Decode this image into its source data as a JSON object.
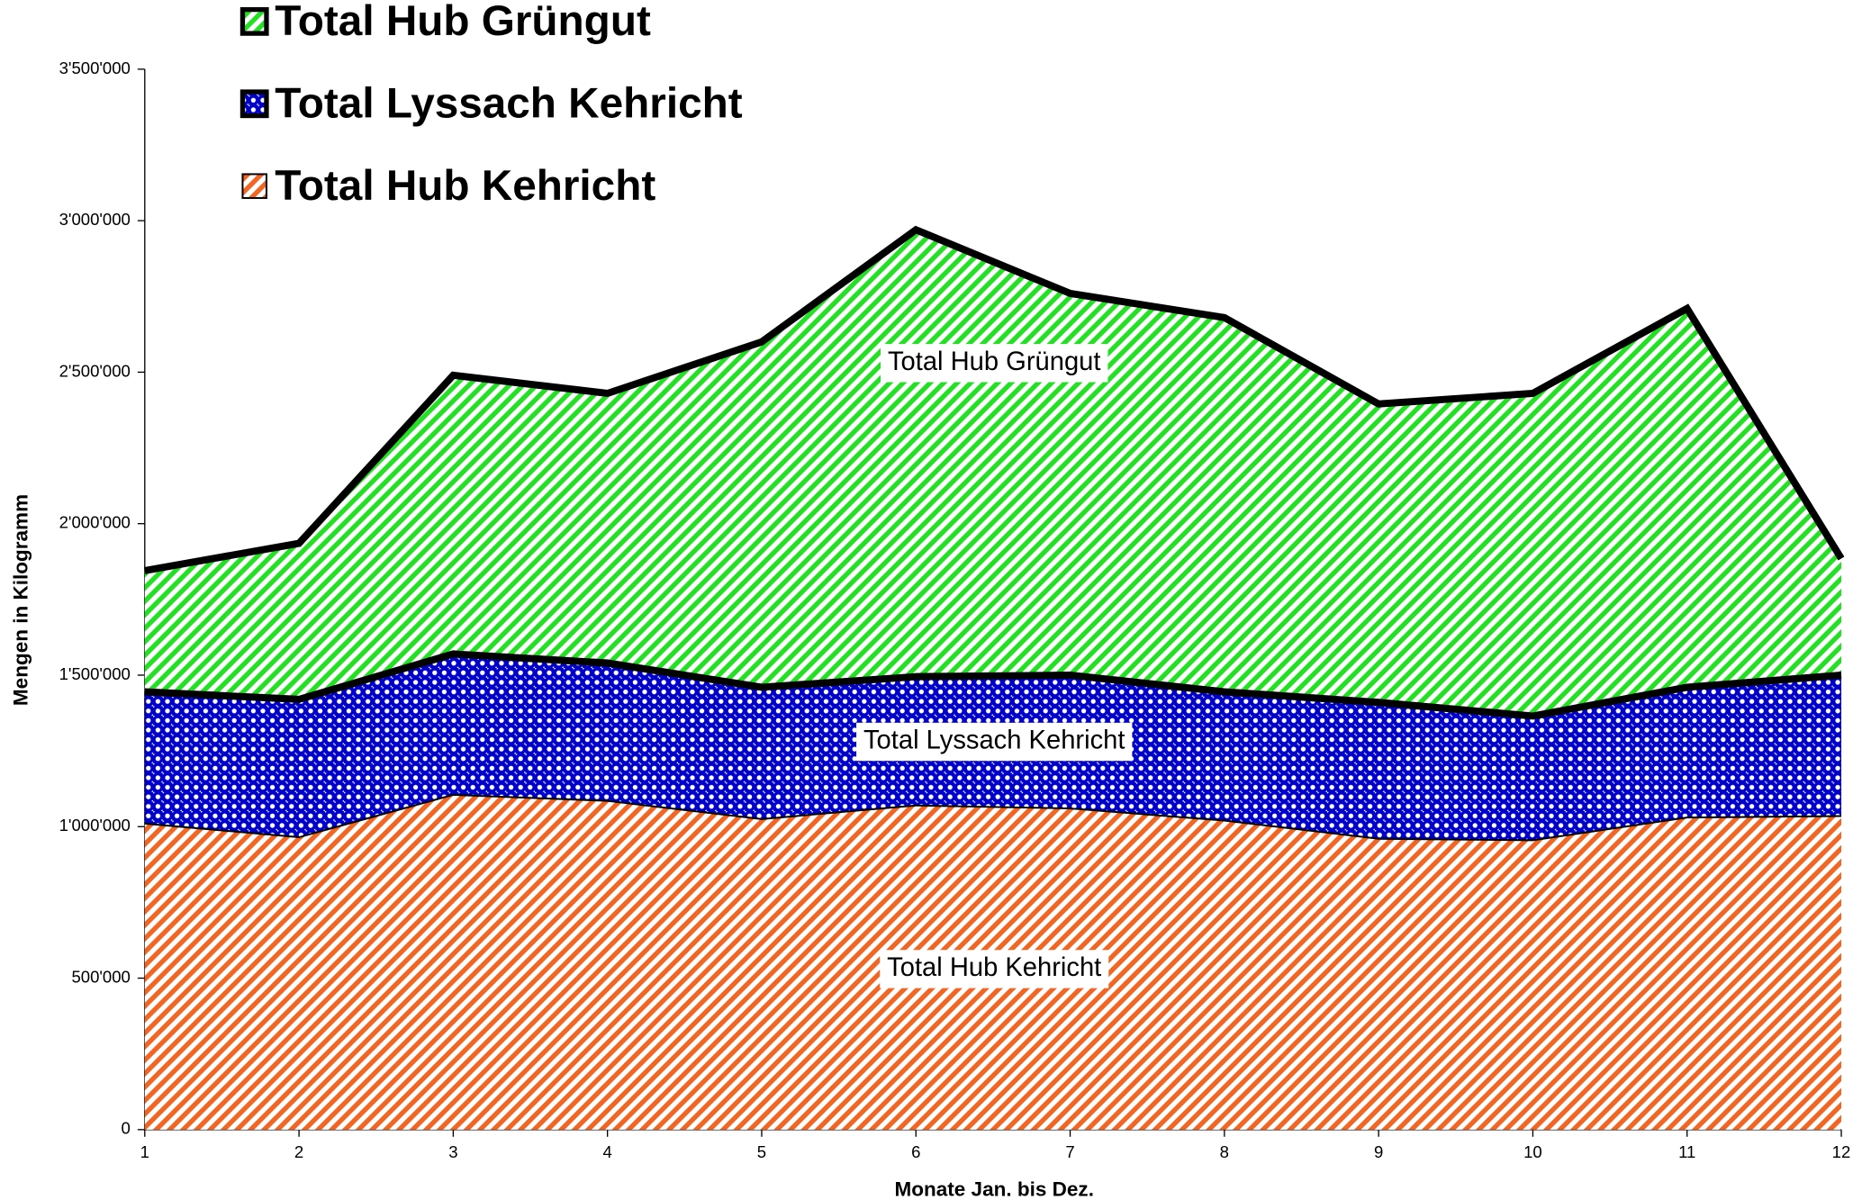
{
  "chart_data": {
    "type": "stacked_area",
    "x_label": "Monate Jan. bis Dez.",
    "y_label": "Mengen in Kilogramm",
    "x": [
      1,
      2,
      3,
      4,
      5,
      6,
      7,
      8,
      9,
      10,
      11,
      12
    ],
    "xlim": [
      1,
      12
    ],
    "xticks": [
      1,
      2,
      3,
      4,
      5,
      6,
      7,
      8,
      9,
      10,
      11,
      12
    ],
    "ylim": [
      0,
      3500000
    ],
    "yticks": [
      0,
      {
        "value": 500000,
        "label": "500'000"
      },
      {
        "value": 1000000,
        "label": "1'000'000"
      },
      {
        "value": 1500000,
        "label": "1'500'000"
      },
      {
        "value": 2000000,
        "label": "2'000'000"
      },
      {
        "value": 2500000,
        "label": "2'500'000"
      },
      {
        "value": 3000000,
        "label": "3'000'000"
      },
      {
        "value": 3500000,
        "label": "3'500'000"
      }
    ],
    "series": [
      {
        "name": "Total Hub Kehricht",
        "color": "#f26522",
        "pattern": "stripes",
        "outline_width": 1.5,
        "values": [
          1010000,
          965000,
          1105000,
          1085000,
          1025000,
          1070000,
          1060000,
          1020000,
          960000,
          955000,
          1030000,
          1035000
        ]
      },
      {
        "name": "Total Lyssach Kehricht",
        "color": "#0000cc",
        "pattern": "dots",
        "outline_width": 6,
        "values": [
          435000,
          455000,
          465000,
          455000,
          435000,
          425000,
          440000,
          425000,
          450000,
          410000,
          430000,
          465000
        ]
      },
      {
        "name": "Total Hub Grüngut",
        "color": "#22e022",
        "pattern": "stripes",
        "outline_width": 6,
        "values": [
          400000,
          515000,
          920000,
          890000,
          1140000,
          1475000,
          1260000,
          1235000,
          985000,
          1065000,
          1250000,
          385000
        ]
      }
    ]
  }
}
